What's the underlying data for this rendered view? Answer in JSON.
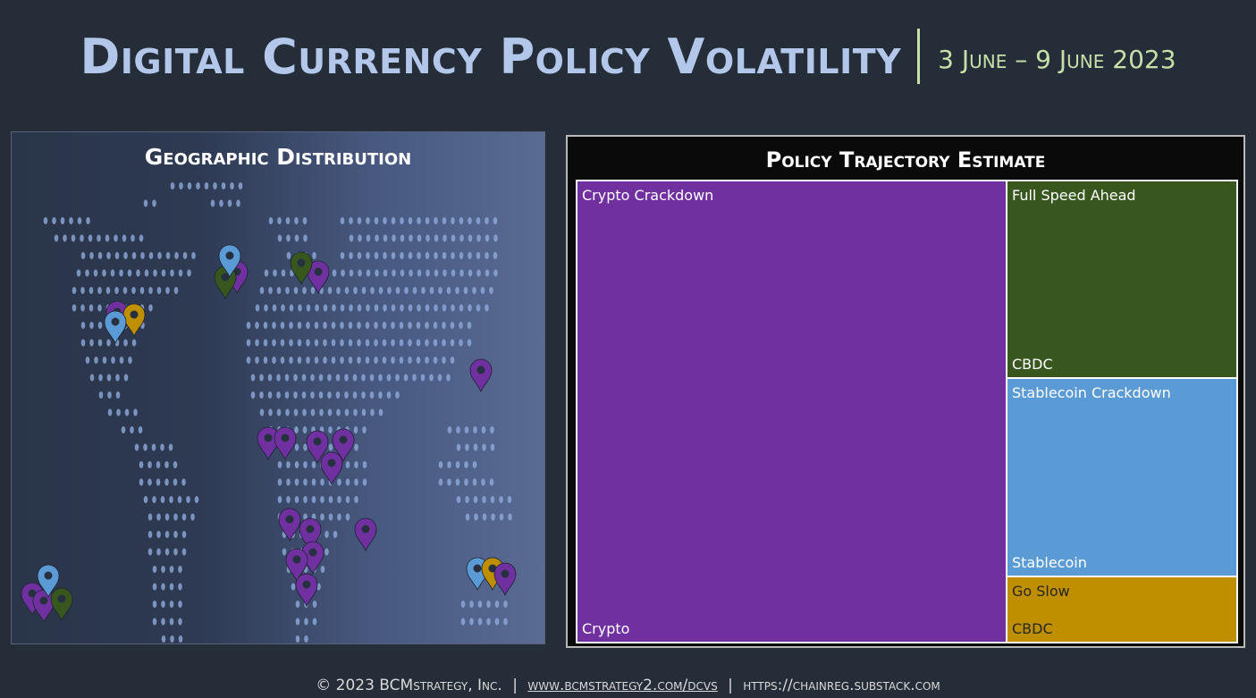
{
  "header": {
    "title": "Digital Currency Policy Volatility",
    "date_range": "3 June – 9 June  2023"
  },
  "geo_panel": {
    "title": "Geographic Distribution",
    "colors": {
      "purple": "#7030a0",
      "green": "#38571f",
      "blue": "#5b9bd5",
      "gold": "#bf8f00",
      "dot": "#8eaadb"
    }
  },
  "treemap": {
    "title": "Policy Trajectory Estimate",
    "tiles": [
      {
        "label": "Crypto Crackdown",
        "group": "Crypto",
        "color": "#7030a0"
      },
      {
        "label": "Full Speed Ahead",
        "group": "CBDC",
        "color": "#38571f"
      },
      {
        "label": "Stablecoin Crackdown",
        "group": "Stablecoin",
        "color": "#5b9bd5"
      },
      {
        "label": "Go Slow",
        "group": "CBDC",
        "color": "#bf8f00"
      }
    ]
  },
  "footer": {
    "copyright": "© 2023",
    "company": "BCMstrategy, Inc.",
    "url1": "www.bcmstrategy2.com/dcvs",
    "url2": "https://chainreg.substack.com"
  }
}
